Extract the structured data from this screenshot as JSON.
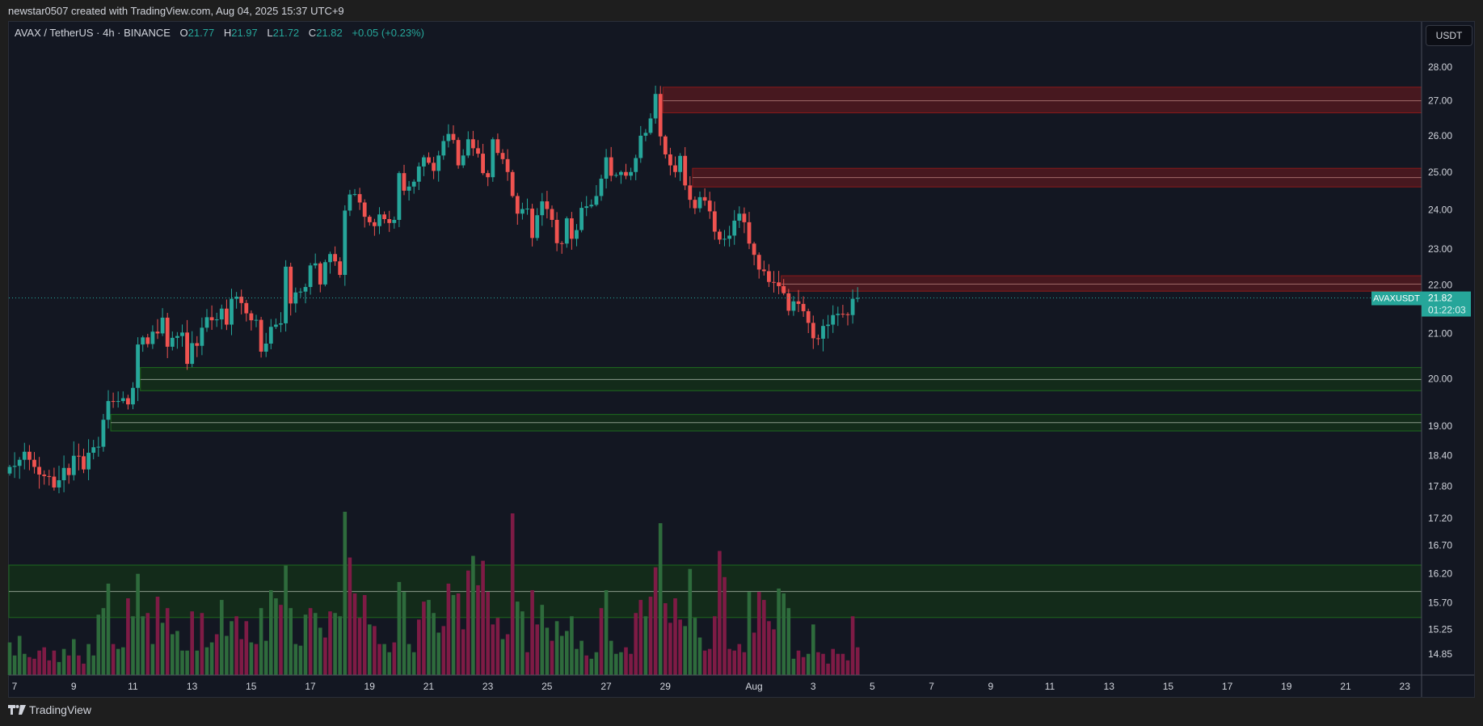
{
  "credit": "newstar0507 created with TradingView.com, Aug 04, 2025 15:37 UTC+9",
  "legend": {
    "symbol": "AVAX / TetherUS · 4h · BINANCE",
    "o_label": "O",
    "o": "21.77",
    "h_label": "H",
    "h": "21.97",
    "l_label": "L",
    "l": "21.72",
    "c_label": "C",
    "c": "21.82",
    "change": "+0.05 (+0.23%)"
  },
  "currency_button": "USDT",
  "last_price": {
    "symbol": "AVAXUSDT",
    "price": "21.82",
    "countdown": "01:22:03",
    "value": 21.82
  },
  "watermark": "TradingView",
  "colors": {
    "up": "#26a69a",
    "down": "#ef5350",
    "vol_up": "#2e6b3c",
    "vol_down": "#7e1b45",
    "supply": "#8b1a1a",
    "demand": "#1e6b1e"
  },
  "chart_data": {
    "type": "candlestick",
    "title": "AVAX / TetherUS · 4h · BINANCE",
    "ylabel": "USDT",
    "y_scale": "log",
    "ylim": [
      14.6,
      28.6
    ],
    "y_ticks": [
      "28.00",
      "27.00",
      "26.00",
      "25.00",
      "24.00",
      "23.00",
      "22.00",
      "21.00",
      "20.00",
      "19.00",
      "18.40",
      "17.80",
      "17.20",
      "16.70",
      "16.20",
      "15.70",
      "15.25",
      "14.85"
    ],
    "x_ticks": [
      {
        "label": "7",
        "day": 0
      },
      {
        "label": "9",
        "day": 2
      },
      {
        "label": "11",
        "day": 4
      },
      {
        "label": "13",
        "day": 6
      },
      {
        "label": "15",
        "day": 8
      },
      {
        "label": "17",
        "day": 10
      },
      {
        "label": "19",
        "day": 12
      },
      {
        "label": "21",
        "day": 14
      },
      {
        "label": "23",
        "day": 16
      },
      {
        "label": "25",
        "day": 18
      },
      {
        "label": "27",
        "day": 20
      },
      {
        "label": "29",
        "day": 22
      },
      {
        "label": "Aug",
        "day": 25
      },
      {
        "label": "3",
        "day": 27
      },
      {
        "label": "5",
        "day": 29
      },
      {
        "label": "7",
        "day": 31
      },
      {
        "label": "9",
        "day": 33
      },
      {
        "label": "11",
        "day": 35
      },
      {
        "label": "13",
        "day": 37
      },
      {
        "label": "15",
        "day": 39
      },
      {
        "label": "17",
        "day": 41
      },
      {
        "label": "19",
        "day": 43
      },
      {
        "label": "21",
        "day": 45
      },
      {
        "label": "23",
        "day": 47
      }
    ],
    "first_open": 18.05,
    "close": [
      18.18,
      18.2,
      18.32,
      18.48,
      18.32,
      18.18,
      18.03,
      18.0,
      17.99,
      17.78,
      17.92,
      18.16,
      18.02,
      18.4,
      18.39,
      18.13,
      18.46,
      18.57,
      18.58,
      19.13,
      19.52,
      19.51,
      19.52,
      19.58,
      19.45,
      19.8,
      20.75,
      20.91,
      20.76,
      21.04,
      21.0,
      21.36,
      20.7,
      20.9,
      20.94,
      21.02,
      20.32,
      20.78,
      20.72,
      21.13,
      21.37,
      21.3,
      21.32,
      21.57,
      21.2,
      21.8,
      21.85,
      21.7,
      21.46,
      21.3,
      21.31,
      20.59,
      20.77,
      21.15,
      21.2,
      21.23,
      22.57,
      21.69,
      21.95,
      21.97,
      22.08,
      22.6,
      22.65,
      22.14,
      22.68,
      22.88,
      22.7,
      22.37,
      23.98,
      24.4,
      24.41,
      24.19,
      23.82,
      23.68,
      23.58,
      23.88,
      23.76,
      23.66,
      23.74,
      24.97,
      24.5,
      24.61,
      24.74,
      25.15,
      25.4,
      25.25,
      25.03,
      25.45,
      25.85,
      26.05,
      25.88,
      25.18,
      25.45,
      25.9,
      25.65,
      25.5,
      24.97,
      24.86,
      25.9,
      25.52,
      25.35,
      25.0,
      24.36,
      23.9,
      24.02,
      24.03,
      23.28,
      23.86,
      24.22,
      24.02,
      23.74,
      23.15,
      23.14,
      23.78,
      23.26,
      23.48,
      24.05,
      24.09,
      24.13,
      24.36,
      24.82,
      25.4,
      24.9,
      24.92,
      25.0,
      24.9,
      25.0,
      25.38,
      26.0,
      26.08,
      26.49,
      27.2,
      25.98,
      25.48,
      25.18,
      25.0,
      25.44,
      24.64,
      24.26,
      24.04,
      24.33,
      24.24,
      23.96,
      23.44,
      23.24,
      23.26,
      23.34,
      23.72,
      23.9,
      23.68,
      23.14,
      22.86,
      22.5,
      22.46,
      22.2,
      22.19,
      22.1,
      21.93,
      21.52,
      21.74,
      21.68,
      21.51,
      21.24,
      20.89,
      20.88,
      21.17,
      21.2,
      21.42,
      21.45,
      21.44,
      21.42,
      21.8,
      21.82
    ],
    "volume_relative": [
      20,
      12,
      24,
      13,
      11,
      10,
      15,
      17,
      9,
      15,
      8,
      16,
      12,
      22,
      12,
      7,
      19,
      12,
      37,
      41,
      56,
      19,
      16,
      17,
      47,
      36,
      62,
      36,
      38,
      19,
      48,
      32,
      41,
      25,
      27,
      15,
      15,
      39,
      15,
      38,
      17,
      20,
      25,
      46,
      24,
      33,
      36,
      22,
      33,
      20,
      19,
      41,
      21,
      52,
      47,
      43,
      67,
      41,
      19,
      18,
      37,
      41,
      38,
      29,
      23,
      39,
      38,
      36,
      100,
      72,
      50,
      35,
      49,
      31,
      30,
      19,
      19,
      14,
      20,
      57,
      51,
      19,
      14,
      34,
      45,
      46,
      38,
      26,
      30,
      56,
      49,
      50,
      28,
      64,
      73,
      55,
      70,
      51,
      31,
      35,
      22,
      25,
      99,
      45,
      39,
      14,
      52,
      31,
      43,
      29,
      21,
      33,
      24,
      27,
      36,
      16,
      21,
      12,
      10,
      14,
      41,
      52,
      21,
      13,
      14,
      17,
      13,
      38,
      46,
      36,
      48,
      66,
      93,
      44,
      32,
      47,
      34,
      30,
      65,
      35,
      23,
      15,
      16,
      36,
      76,
      60,
      16,
      15,
      19,
      14,
      51,
      26,
      51,
      46,
      33,
      28,
      53,
      50,
      41,
      10,
      15,
      11,
      13,
      31,
      14,
      13,
      7,
      16,
      13,
      13,
      9,
      36,
      17
    ],
    "volume_colors": "ggggrrrrrrggrgrrgggggrggrgggrgrgrggggrgrggrgggrrrgrggggrgggggrggrrgggrrrrgrrggrggggrrgggrrgrrrgrrrrrgrrggrrrggrggggggrggrggggrrrrgrrgrrrrggggrrrrrrrrrgrrrrrggggrrgg",
    "zones": [
      {
        "name": "supply-zone-1",
        "kind": "supply",
        "top": 27.4,
        "mid": 27.0,
        "bottom": 26.65,
        "from_candle": 133
      },
      {
        "name": "supply-zone-2",
        "kind": "supply",
        "top": 25.1,
        "mid": 24.85,
        "bottom": 24.6,
        "from_candle": 139
      },
      {
        "name": "supply-zone-3",
        "kind": "supply",
        "top": 22.35,
        "mid": 22.15,
        "bottom": 21.98,
        "from_candle": 157
      },
      {
        "name": "demand-zone-1",
        "kind": "demand",
        "top": 20.24,
        "mid": 19.98,
        "bottom": 19.74,
        "from_candle": 27
      },
      {
        "name": "demand-zone-2",
        "kind": "demand",
        "top": 19.24,
        "mid": 19.07,
        "bottom": 18.9,
        "from_candle": 21
      },
      {
        "name": "demand-zone-3",
        "kind": "demand",
        "top": 16.35,
        "mid": 15.89,
        "bottom": 15.45,
        "from_candle": 0
      }
    ]
  }
}
